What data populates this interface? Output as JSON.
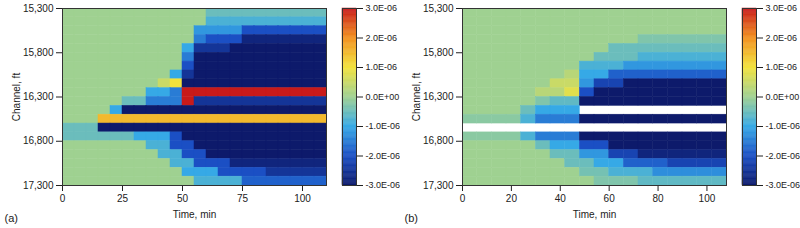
{
  "chart_data": [
    {
      "type": "heatmap",
      "panel_label": "(a)",
      "xlabel": "Time, min",
      "ylabel": "Channel, ft",
      "xlim": [
        0,
        110
      ],
      "xticks": [
        0,
        25,
        50,
        75,
        100
      ],
      "ylim": [
        17300,
        15300
      ],
      "yticks": [
        {
          "value": 15300,
          "label": "15,300"
        },
        {
          "value": 15800,
          "label": "15,800"
        },
        {
          "value": 16300,
          "label": "16,300"
        },
        {
          "value": 16800,
          "label": "16,800"
        },
        {
          "value": 17300,
          "label": "17,300"
        }
      ],
      "x_bins": [
        0,
        5,
        10,
        15,
        20,
        25,
        30,
        35,
        40,
        45,
        50,
        55,
        60,
        65,
        70,
        75,
        80,
        85,
        90,
        95,
        100,
        105,
        110
      ],
      "y_bins": [
        15300,
        15400,
        15500,
        15600,
        15700,
        15800,
        15900,
        16000,
        16100,
        16200,
        16300,
        16400,
        16500,
        16600,
        16700,
        16800,
        16900,
        17000,
        17100,
        17200,
        17300
      ],
      "values": [
        [
          0,
          0,
          0,
          0,
          0,
          0,
          0,
          0,
          0,
          0,
          0,
          0,
          -5e-07,
          -5e-07,
          -5e-07,
          -5e-07,
          -5e-07,
          -5e-07,
          -5e-07,
          -5e-07,
          -5e-07,
          -5e-07
        ],
        [
          0,
          0,
          0,
          0,
          0,
          0,
          0,
          0,
          0,
          0,
          0,
          0,
          -8e-07,
          -8e-07,
          -8e-07,
          -8e-07,
          -8e-07,
          -8e-07,
          -8e-07,
          -8e-07,
          -8e-07,
          -8e-07
        ],
        [
          0,
          0,
          0,
          0,
          0,
          0,
          0,
          0,
          0,
          0,
          0,
          -1.2e-06,
          -1.2e-06,
          -1.2e-06,
          -1.2e-06,
          -2e-06,
          -2e-06,
          -2e-06,
          -2e-06,
          -2e-06,
          -2e-06,
          -2e-06
        ],
        [
          0,
          0,
          0,
          0,
          0,
          0,
          0,
          0,
          0,
          0,
          0,
          -1.5e-06,
          -2e-06,
          -2e-06,
          -2e-06,
          -2.8e-06,
          -2.8e-06,
          -2.8e-06,
          -2.8e-06,
          -2.8e-06,
          -2.8e-06,
          -2.8e-06
        ],
        [
          0,
          0,
          0,
          0,
          0,
          0,
          0,
          0,
          0,
          0,
          -1e-06,
          -2.5e-06,
          -2.5e-06,
          -2.5e-06,
          -3e-06,
          -3e-06,
          -3e-06,
          -3e-06,
          -3e-06,
          -3e-06,
          -3e-06,
          -3e-06
        ],
        [
          0,
          0,
          0,
          0,
          0,
          0,
          0,
          0,
          0,
          0,
          -1.5e-06,
          -3e-06,
          -3e-06,
          -3e-06,
          -3e-06,
          -3e-06,
          -3e-06,
          -3e-06,
          -3e-06,
          -3e-06,
          -3e-06,
          -3e-06
        ],
        [
          0,
          0,
          0,
          0,
          0,
          0,
          0,
          0,
          0,
          0,
          -2e-06,
          -3e-06,
          -3e-06,
          -3e-06,
          -3e-06,
          -3e-06,
          -3e-06,
          -3e-06,
          -3e-06,
          -3e-06,
          -3e-06,
          -3e-06
        ],
        [
          0,
          0,
          0,
          0,
          0,
          0,
          0,
          0,
          0,
          -1e-06,
          -2.5e-06,
          -3e-06,
          -3e-06,
          -3e-06,
          -3e-06,
          -3e-06,
          -3e-06,
          -3e-06,
          -3e-06,
          -3e-06,
          -3e-06,
          -3e-06
        ],
        [
          0,
          0,
          0,
          0,
          0,
          0,
          0,
          0,
          5e-07,
          1e-06,
          -3e-06,
          -3e-06,
          -3e-06,
          -3e-06,
          -3e-06,
          -3e-06,
          -3e-06,
          -3e-06,
          -3e-06,
          -3e-06,
          -3e-06,
          -3e-06
        ],
        [
          0,
          0,
          0,
          0,
          0,
          0,
          0,
          -1e-06,
          -1e-06,
          -1.5e-06,
          3e-06,
          3e-06,
          3e-06,
          3e-06,
          3e-06,
          3e-06,
          3e-06,
          3e-06,
          3e-06,
          3e-06,
          3e-06,
          3e-06
        ],
        [
          0,
          0,
          0,
          0,
          0,
          -5e-07,
          -5e-07,
          -1.5e-06,
          -1.5e-06,
          -1.5e-06,
          3e-06,
          -2.5e-06,
          -2.5e-06,
          -2.5e-06,
          -2.5e-06,
          -2.5e-06,
          -2.5e-06,
          -2.5e-06,
          -2.5e-06,
          -2.5e-06,
          -2.5e-06,
          -2.5e-06
        ],
        [
          0,
          0,
          0,
          0,
          -1e-06,
          -3e-06,
          -3e-06,
          -3e-06,
          -3e-06,
          -3e-06,
          -3e-06,
          -3e-06,
          -3e-06,
          -3e-06,
          -3e-06,
          -3e-06,
          -3e-06,
          -3e-06,
          -3e-06,
          -3e-06,
          -3e-06,
          -3e-06
        ],
        [
          0,
          0,
          0,
          1.5e-06,
          1.5e-06,
          1.5e-06,
          1.5e-06,
          1.5e-06,
          1.5e-06,
          1.5e-06,
          1.5e-06,
          1.5e-06,
          1.5e-06,
          1.5e-06,
          1.5e-06,
          1.5e-06,
          1.5e-06,
          1.5e-06,
          1.5e-06,
          1.5e-06,
          1.5e-06,
          1.5e-06
        ],
        [
          -5e-07,
          -5e-07,
          -5e-07,
          -3e-06,
          -3e-06,
          -3e-06,
          -3e-06,
          -3e-06,
          -3e-06,
          -3e-06,
          -3e-06,
          -3e-06,
          -3e-06,
          -3e-06,
          -3e-06,
          -3e-06,
          -3e-06,
          -3e-06,
          -3e-06,
          -3e-06,
          -3e-06,
          -3e-06
        ],
        [
          -5e-07,
          -5e-07,
          -5e-07,
          -5e-07,
          -5e-07,
          -5e-07,
          -1e-06,
          -1e-06,
          -1e-06,
          -2e-06,
          -3e-06,
          -3e-06,
          -3e-06,
          -3e-06,
          -3e-06,
          -3e-06,
          -3e-06,
          -3e-06,
          -3e-06,
          -3e-06,
          -3e-06,
          -3e-06
        ],
        [
          0,
          0,
          0,
          0,
          0,
          0,
          0,
          -8e-07,
          -8e-07,
          -2e-06,
          -2e-06,
          -3e-06,
          -3e-06,
          -3e-06,
          -3e-06,
          -3e-06,
          -3e-06,
          -3e-06,
          -3e-06,
          -3e-06,
          -3e-06,
          -3e-06
        ],
        [
          0,
          0,
          0,
          0,
          0,
          0,
          0,
          0,
          -8e-07,
          -8e-07,
          -2e-06,
          -2e-06,
          -3e-06,
          -3e-06,
          -3e-06,
          -3e-06,
          -3e-06,
          -3e-06,
          -3e-06,
          -3e-06,
          -3e-06,
          -3e-06
        ],
        [
          0,
          0,
          0,
          0,
          0,
          0,
          0,
          0,
          0,
          -8e-07,
          -8e-07,
          -2e-06,
          -2e-06,
          -2e-06,
          -2.8e-06,
          -2.8e-06,
          -2.8e-06,
          -2.8e-06,
          -2.8e-06,
          -2.8e-06,
          -2.8e-06,
          -2.8e-06
        ],
        [
          0,
          0,
          0,
          0,
          0,
          0,
          0,
          0,
          0,
          0,
          -1e-06,
          -1e-06,
          -1e-06,
          -2e-06,
          -2e-06,
          -2e-06,
          -2e-06,
          -2.5e-06,
          -2.5e-06,
          -2.5e-06,
          -2.5e-06,
          -2.5e-06
        ],
        [
          0,
          0,
          0,
          0,
          0,
          0,
          0,
          0,
          0,
          0,
          0,
          -8e-07,
          -8e-07,
          -8e-07,
          -8e-07,
          -1.8e-06,
          -1.8e-06,
          -1.8e-06,
          -1.8e-06,
          -1.8e-06,
          -1.8e-06,
          -1.8e-06
        ]
      ],
      "colorbar": {
        "range": [
          -3e-06,
          3e-06
        ],
        "ticks": [
          {
            "value": 3e-06,
            "label": "3.0E-06"
          },
          {
            "value": 2e-06,
            "label": "2.0E-06"
          },
          {
            "value": 1e-06,
            "label": "1.0E-06"
          },
          {
            "value": 0,
            "label": "0.0E+00"
          },
          {
            "value": -1e-06,
            "label": "-1.0E-06"
          },
          {
            "value": -2e-06,
            "label": "-2.0E-06"
          },
          {
            "value": -3e-06,
            "label": "-3.0E-06"
          }
        ]
      }
    },
    {
      "type": "heatmap",
      "panel_label": "(b)",
      "xlabel": "Time, min",
      "ylabel": "Channel, ft",
      "xlim": [
        0,
        108
      ],
      "xticks": [
        0,
        20,
        40,
        60,
        80,
        100
      ],
      "ylim": [
        17300,
        15300
      ],
      "yticks": [
        {
          "value": 15300,
          "label": "15,300"
        },
        {
          "value": 15800,
          "label": "15,800"
        },
        {
          "value": 16300,
          "label": "16,300"
        },
        {
          "value": 16800,
          "label": "16,800"
        },
        {
          "value": 17300,
          "label": "17,300"
        }
      ],
      "x_bins": [
        0,
        6,
        12,
        18,
        24,
        30,
        36,
        42,
        48,
        54,
        60,
        66,
        72,
        78,
        84,
        90,
        96,
        102,
        108
      ],
      "y_bins": [
        15300,
        15400,
        15500,
        15600,
        15700,
        15800,
        15900,
        16000,
        16100,
        16200,
        16300,
        16400,
        16500,
        16600,
        16700,
        16800,
        16900,
        17000,
        17100,
        17200,
        17300
      ],
      "values": [
        [
          0,
          0,
          0,
          0,
          0,
          0,
          0,
          0,
          0,
          0,
          0,
          0,
          0,
          0,
          0,
          0,
          0,
          0
        ],
        [
          0,
          0,
          0,
          0,
          0,
          0,
          0,
          0,
          0,
          0,
          0,
          0,
          0,
          0,
          0,
          0,
          0,
          0
        ],
        [
          0,
          0,
          0,
          0,
          0,
          0,
          0,
          0,
          0,
          0,
          0,
          0,
          0,
          0,
          0,
          0,
          0,
          0
        ],
        [
          0,
          0,
          0,
          0,
          0,
          0,
          0,
          0,
          0,
          0,
          0,
          0,
          -3e-07,
          -3e-07,
          -3e-07,
          -3e-07,
          -3e-07,
          -3e-07
        ],
        [
          0,
          0,
          0,
          0,
          0,
          0,
          0,
          0,
          0,
          0,
          -5e-07,
          -5e-07,
          -5e-07,
          -5e-07,
          -5e-07,
          -5e-07,
          -5e-07,
          -5e-07
        ],
        [
          0,
          0,
          0,
          0,
          0,
          0,
          0,
          0,
          0,
          -5e-07,
          -5e-07,
          -5e-07,
          -8e-07,
          -8e-07,
          -8e-07,
          -8e-07,
          -8e-07,
          -8e-07
        ],
        [
          0,
          0,
          0,
          0,
          0,
          0,
          0,
          0,
          -8e-07,
          -8e-07,
          -8e-07,
          -1.2e-06,
          -1.2e-06,
          -1.2e-06,
          -1.2e-06,
          -1.2e-06,
          -1.2e-06,
          -1.2e-06
        ],
        [
          0,
          0,
          0,
          0,
          0,
          0,
          0,
          3e-07,
          -1e-06,
          -1e-06,
          -1.8e-06,
          -1.8e-06,
          -1.8e-06,
          -1.8e-06,
          -1.8e-06,
          -1.8e-06,
          -1.8e-06,
          -1.8e-06
        ],
        [
          0,
          0,
          0,
          0,
          0,
          0,
          5e-07,
          5e-07,
          -1.2e-06,
          -2.2e-06,
          -2.2e-06,
          -3e-06,
          -3e-06,
          -3e-06,
          -3e-06,
          -3e-06,
          -3e-06,
          -3e-06
        ],
        [
          0,
          0,
          0,
          0,
          0,
          3e-07,
          3e-07,
          8e-07,
          -2e-06,
          -3e-06,
          -3e-06,
          -3e-06,
          -3e-06,
          -3e-06,
          -3e-06,
          -3e-06,
          -3e-06,
          -3e-06
        ],
        [
          0,
          0,
          0,
          0,
          0,
          -3e-07,
          -6e-07,
          -6e-07,
          -3e-06,
          -3e-06,
          -3e-06,
          -3e-06,
          -3e-06,
          -3e-06,
          -3e-06,
          -3e-06,
          -3e-06,
          -3e-06
        ],
        [
          0,
          0,
          0,
          0,
          -5e-07,
          -1e-06,
          -1e-06,
          -1e-06,
          null,
          null,
          null,
          null,
          null,
          null,
          null,
          null,
          null,
          null
        ],
        [
          -2e-07,
          -2e-07,
          -2e-07,
          -2e-07,
          -8e-07,
          -1.5e-06,
          -1.5e-06,
          -1.5e-06,
          -3e-06,
          -3e-06,
          -3e-06,
          -3e-06,
          -3e-06,
          -3e-06,
          -3e-06,
          -3e-06,
          -3e-06,
          -3e-06
        ],
        [
          null,
          null,
          null,
          null,
          null,
          null,
          null,
          null,
          null,
          null,
          null,
          null,
          null,
          null,
          null,
          null,
          null,
          null
        ],
        [
          -2e-07,
          -2e-07,
          -2e-07,
          -2e-07,
          -8e-07,
          -1.5e-06,
          -1.5e-06,
          -1.5e-06,
          -3e-06,
          -3e-06,
          -3e-06,
          -3e-06,
          -3e-06,
          -3e-06,
          -3e-06,
          -3e-06,
          -3e-06,
          -3e-06
        ],
        [
          0,
          0,
          0,
          0,
          0,
          -5e-07,
          -1e-06,
          -1e-06,
          -2e-06,
          -2e-06,
          -3e-06,
          -3e-06,
          -3e-06,
          -3e-06,
          -3e-06,
          -3e-06,
          -3e-06,
          -3e-06
        ],
        [
          0,
          0,
          0,
          0,
          0,
          0,
          -5e-07,
          -5e-07,
          -1.2e-06,
          -1.2e-06,
          -2.2e-06,
          -2.2e-06,
          -2.8e-06,
          -2.8e-06,
          -2.8e-06,
          -2.8e-06,
          -2.8e-06,
          -2.8e-06
        ],
        [
          0,
          0,
          0,
          0,
          0,
          0,
          0,
          -5e-07,
          -5e-07,
          -1e-06,
          -1e-06,
          -1.8e-06,
          -1.8e-06,
          -1.8e-06,
          -2.2e-06,
          -2.2e-06,
          -2.2e-06,
          -2.2e-06
        ],
        [
          0,
          0,
          0,
          0,
          0,
          0,
          0,
          0,
          -4e-07,
          -4e-07,
          -8e-07,
          -8e-07,
          -8e-07,
          -1.3e-06,
          -1.3e-06,
          -1.3e-06,
          -1.3e-06,
          -1.3e-06
        ],
        [
          0,
          0,
          0,
          0,
          0,
          0,
          0,
          0,
          0,
          -3e-07,
          -3e-07,
          -3e-07,
          -6e-07,
          -6e-07,
          -6e-07,
          -6e-07,
          -6e-07,
          -6e-07
        ]
      ],
      "colorbar": {
        "range": [
          -3e-06,
          3e-06
        ],
        "ticks": [
          {
            "value": 3e-06,
            "label": "3.0E-06"
          },
          {
            "value": 2e-06,
            "label": "2.0E-06"
          },
          {
            "value": 1e-06,
            "label": "1.0E-06"
          },
          {
            "value": 0,
            "label": "0.0E+00"
          },
          {
            "value": -1e-06,
            "label": "-1.0E-06"
          },
          {
            "value": -2e-06,
            "label": "-2.0E-06"
          },
          {
            "value": -3e-06,
            "label": "-3.0E-06"
          }
        ]
      }
    }
  ]
}
